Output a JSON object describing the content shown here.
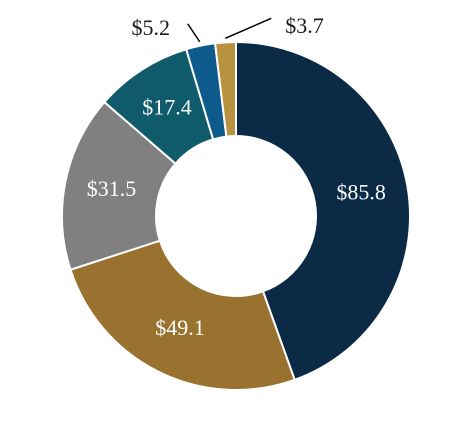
{
  "chart_data": {
    "type": "pie",
    "donut": true,
    "categories": [
      "",
      "",
      "",
      "",
      "",
      ""
    ],
    "values": [
      85.8,
      49.1,
      31.5,
      17.4,
      5.2,
      3.7
    ],
    "labels": [
      "$85.8",
      "$49.1",
      "$31.5",
      "$17.4",
      "$5.2",
      "$3.7"
    ],
    "colors": [
      "#0a2a45",
      "#9a7230",
      "#808080",
      "#0f5a6b",
      "#0d5a8c",
      "#b8923e"
    ],
    "label_colors": [
      "#ffffff",
      "#ffffff",
      "#ffffff",
      "#ffffff",
      "#1a1a1a",
      "#1a1a1a"
    ],
    "outside_labels": [
      false,
      false,
      false,
      false,
      true,
      true
    ],
    "title": "",
    "legend": "none"
  }
}
